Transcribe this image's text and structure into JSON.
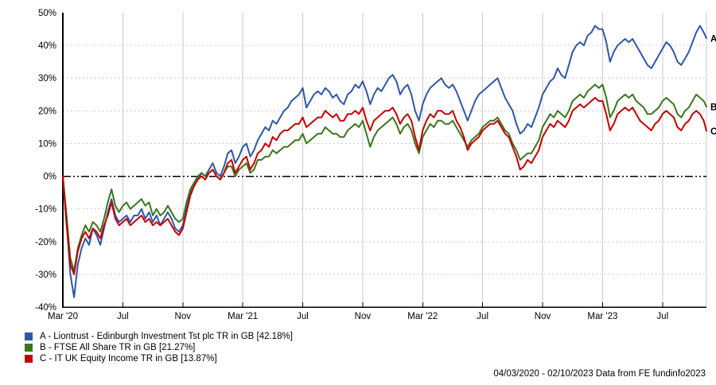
{
  "chart_data": {
    "type": "line",
    "title": "",
    "footer": "04/03/2020 - 02/10/2023 Data from FE fundinfo2023",
    "x_range": {
      "min": 0,
      "max": 42.93
    },
    "y_axis": {
      "min": -40,
      "max": 50,
      "step": 10,
      "unit": "%"
    },
    "colors": {
      "grid": "#c9c9c9",
      "axis": "#000000",
      "zero_line": "#000000"
    },
    "x_ticks": [
      {
        "label": "Mar '20",
        "month": 0
      },
      {
        "label": "Jul",
        "month": 4
      },
      {
        "label": "Nov",
        "month": 8
      },
      {
        "label": "Mar '21",
        "month": 12
      },
      {
        "label": "Jul",
        "month": 16
      },
      {
        "label": "Nov",
        "month": 20
      },
      {
        "label": "Mar '22",
        "month": 24
      },
      {
        "label": "Jul",
        "month": 28
      },
      {
        "label": "Nov",
        "month": 32
      },
      {
        "label": "Mar '23",
        "month": 36
      },
      {
        "label": "Jul",
        "month": 40
      }
    ],
    "x_months": [
      0,
      0.25,
      0.5,
      0.75,
      1,
      1.25,
      1.5,
      1.75,
      2,
      2.25,
      2.5,
      2.75,
      3,
      3.25,
      3.5,
      3.75,
      4,
      4.25,
      4.5,
      4.75,
      5,
      5.25,
      5.5,
      5.75,
      6,
      6.25,
      6.5,
      6.75,
      7,
      7.25,
      7.5,
      7.75,
      8,
      8.25,
      8.5,
      8.75,
      9,
      9.25,
      9.5,
      9.75,
      10,
      10.25,
      10.5,
      10.75,
      11,
      11.25,
      11.5,
      11.75,
      12,
      12.25,
      12.5,
      12.75,
      13,
      13.25,
      13.5,
      13.75,
      14,
      14.25,
      14.5,
      14.75,
      15,
      15.25,
      15.5,
      15.75,
      16,
      16.25,
      16.5,
      16.75,
      17,
      17.25,
      17.5,
      17.75,
      18,
      18.25,
      18.5,
      18.75,
      19,
      19.25,
      19.5,
      19.75,
      20,
      20.25,
      20.5,
      20.75,
      21,
      21.25,
      21.5,
      21.75,
      22,
      22.25,
      22.5,
      22.75,
      23,
      23.25,
      23.5,
      23.75,
      24,
      24.25,
      24.5,
      24.75,
      25,
      25.25,
      25.5,
      25.75,
      26,
      26.25,
      26.5,
      26.75,
      27,
      27.25,
      27.5,
      27.75,
      28,
      28.25,
      28.5,
      28.75,
      29,
      29.25,
      29.5,
      29.75,
      30,
      30.25,
      30.5,
      30.75,
      31,
      31.25,
      31.5,
      31.75,
      32,
      32.25,
      32.5,
      32.75,
      33,
      33.25,
      33.5,
      33.75,
      34,
      34.25,
      34.5,
      34.75,
      35,
      35.25,
      35.5,
      35.75,
      36,
      36.25,
      36.5,
      36.75,
      37,
      37.25,
      37.5,
      37.75,
      38,
      38.25,
      38.5,
      38.75,
      39,
      39.25,
      39.5,
      39.75,
      40,
      40.25,
      40.5,
      40.75,
      41,
      41.25,
      41.5,
      41.75,
      42,
      42.25,
      42.5,
      42.75,
      42.93
    ],
    "series": [
      {
        "key": "A",
        "label": "A - Liontrust - Edinburgh Investment Tst plc TR in GB [42.18%]",
        "final_return_pct": 42.18,
        "color": "#3057a4",
        "values": [
          0,
          -14,
          -30,
          -37,
          -27,
          -22,
          -19,
          -21,
          -16,
          -18,
          -21,
          -16,
          -11,
          -7,
          -12,
          -14,
          -13,
          -12,
          -14,
          -12,
          -12,
          -10,
          -13,
          -11,
          -14,
          -12,
          -15,
          -13,
          -11,
          -13,
          -16,
          -17,
          -15,
          -10,
          -5,
          -3,
          -1,
          1,
          0,
          2,
          4,
          1,
          0,
          3,
          7,
          8,
          4,
          6,
          9,
          10,
          6,
          8,
          11,
          13,
          15,
          14,
          17,
          16,
          18,
          20,
          21,
          23,
          24,
          25,
          27,
          21,
          23,
          25,
          26,
          25,
          27,
          26,
          24,
          25,
          23,
          22,
          25,
          26,
          28,
          27,
          29,
          26,
          22,
          25,
          27,
          26,
          28,
          30,
          31,
          29,
          25,
          27,
          28,
          25,
          20,
          17,
          22,
          25,
          27,
          28,
          29,
          30,
          28,
          27,
          28,
          26,
          23,
          20,
          17,
          20,
          23,
          25,
          26,
          27,
          28,
          29,
          30,
          27,
          24,
          22,
          20,
          16,
          13,
          14,
          16,
          15,
          18,
          21,
          25,
          27,
          29,
          30,
          33,
          31,
          30,
          34,
          38,
          40,
          41,
          40,
          43,
          44,
          46,
          45,
          45,
          41,
          35,
          38,
          40,
          41,
          42,
          41,
          42,
          40,
          38,
          36,
          34,
          33,
          35,
          37,
          39,
          41,
          40,
          38,
          35,
          34,
          36,
          38,
          41,
          44,
          46,
          44,
          42.18
        ]
      },
      {
        "key": "B",
        "label": "B - FTSE All Share TR in GB [21.27%]",
        "final_return_pct": 21.27,
        "color": "#3a761d",
        "values": [
          0,
          -12,
          -25,
          -29,
          -22,
          -18,
          -15,
          -17,
          -14,
          -15,
          -17,
          -13,
          -8,
          -4,
          -9,
          -11,
          -9,
          -8,
          -10,
          -9,
          -8,
          -7,
          -9,
          -8,
          -12,
          -10,
          -12,
          -11,
          -9,
          -11,
          -13,
          -14,
          -13,
          -8,
          -4,
          -2,
          0,
          1,
          0,
          1,
          2,
          0,
          -1,
          1,
          3,
          3,
          0,
          2,
          3,
          4,
          1,
          2,
          5,
          5,
          6,
          6,
          8,
          7,
          8,
          9,
          9,
          10,
          11,
          11,
          13,
          10,
          11,
          12,
          13,
          13,
          15,
          14,
          13,
          13,
          12,
          12,
          14,
          15,
          16,
          15,
          17,
          13,
          9,
          12,
          14,
          15,
          16,
          17,
          18,
          16,
          13,
          15,
          16,
          14,
          10,
          7,
          12,
          14,
          16,
          15,
          17,
          17,
          16,
          16,
          17,
          15,
          13,
          11,
          9,
          11,
          12,
          13,
          15,
          16,
          17,
          17,
          18,
          16,
          14,
          13,
          10,
          8,
          5,
          6,
          7,
          7,
          9,
          11,
          15,
          17,
          19,
          18,
          20,
          19,
          18,
          20,
          23,
          24,
          25,
          24,
          26,
          27,
          28,
          27,
          28,
          24,
          18,
          20,
          23,
          24,
          25,
          24,
          25,
          23,
          22,
          21,
          19,
          19,
          20,
          21,
          23,
          24,
          23,
          22,
          19,
          18,
          20,
          21,
          23,
          25,
          24,
          23,
          21.27
        ]
      },
      {
        "key": "C",
        "label": "C - IT UK Equity Income TR in GB [13.87%]",
        "final_return_pct": 13.87,
        "color": "#c30000",
        "values": [
          0,
          -15,
          -27,
          -30,
          -23,
          -19,
          -17,
          -19,
          -16,
          -17,
          -19,
          -15,
          -12,
          -8,
          -13,
          -15,
          -14,
          -13,
          -15,
          -14,
          -13,
          -12,
          -14,
          -13,
          -15,
          -14,
          -15,
          -14,
          -13,
          -15,
          -17,
          -18,
          -16,
          -11,
          -6,
          -3,
          -1,
          0,
          -1,
          1,
          2,
          0,
          -1,
          1,
          4,
          5,
          1,
          3,
          5,
          6,
          2,
          4,
          7,
          8,
          10,
          9,
          12,
          11,
          13,
          14,
          14,
          15,
          16,
          16,
          18,
          15,
          16,
          17,
          18,
          18,
          20,
          19,
          18,
          19,
          17,
          17,
          19,
          19,
          20,
          19,
          21,
          17,
          14,
          17,
          18,
          19,
          20,
          20,
          21,
          19,
          16,
          18,
          19,
          17,
          12,
          8,
          14,
          17,
          19,
          18,
          20,
          20,
          19,
          19,
          20,
          17,
          15,
          12,
          8,
          10,
          11,
          12,
          14,
          15,
          16,
          16,
          17,
          15,
          13,
          12,
          9,
          6,
          2,
          3,
          5,
          4,
          6,
          8,
          12,
          14,
          16,
          15,
          17,
          16,
          15,
          17,
          20,
          21,
          22,
          21,
          22,
          23,
          24,
          23,
          23,
          19,
          14,
          16,
          19,
          20,
          21,
          20,
          21,
          19,
          17,
          16,
          15,
          14,
          16,
          17,
          19,
          20,
          19,
          18,
          15,
          14,
          16,
          17,
          19,
          20,
          19,
          17,
          13.87
        ]
      }
    ]
  }
}
